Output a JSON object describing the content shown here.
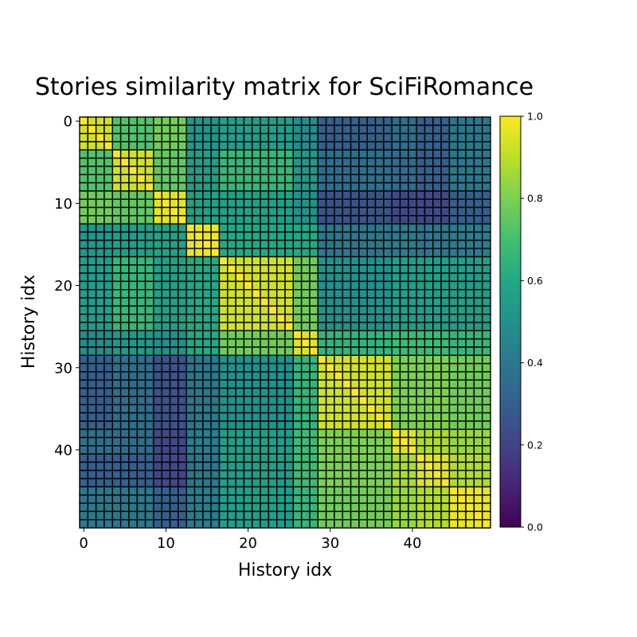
{
  "chart_data": {
    "type": "heatmap",
    "title": "Stories similarity matrix for SciFiRomance",
    "xlabel": "History idx",
    "ylabel": "History idx",
    "n": 50,
    "x_ticks": [
      0,
      10,
      20,
      30,
      40
    ],
    "y_ticks": [
      0,
      10,
      20,
      30,
      40
    ],
    "colormap": "viridis",
    "vmin": 0.0,
    "vmax": 1.0,
    "colorbar_ticks": [
      "0.0",
      "0.2",
      "0.4",
      "0.6",
      "0.8",
      "1.0"
    ],
    "cell_edgecolor": "#000000",
    "diagonal_value": 1.0,
    "groups": [
      {
        "start": 0,
        "end": 3
      },
      {
        "start": 4,
        "end": 8
      },
      {
        "start": 9,
        "end": 12
      },
      {
        "start": 13,
        "end": 16
      },
      {
        "start": 17,
        "end": 25
      },
      {
        "start": 26,
        "end": 28
      },
      {
        "start": 29,
        "end": 37
      },
      {
        "start": 38,
        "end": 40
      },
      {
        "start": 41,
        "end": 44
      },
      {
        "start": 45,
        "end": 49
      }
    ],
    "group_similarity": [
      [
        0.93,
        0.72,
        0.78,
        0.52,
        0.55,
        0.48,
        0.3,
        0.36,
        0.3,
        0.4
      ],
      [
        0.72,
        0.93,
        0.75,
        0.55,
        0.66,
        0.53,
        0.36,
        0.35,
        0.3,
        0.4
      ],
      [
        0.78,
        0.75,
        0.96,
        0.56,
        0.56,
        0.5,
        0.25,
        0.22,
        0.22,
        0.3
      ],
      [
        0.52,
        0.55,
        0.56,
        0.97,
        0.6,
        0.6,
        0.4,
        0.42,
        0.4,
        0.42
      ],
      [
        0.55,
        0.66,
        0.56,
        0.6,
        0.93,
        0.78,
        0.5,
        0.55,
        0.55,
        0.55
      ],
      [
        0.48,
        0.53,
        0.5,
        0.6,
        0.78,
        0.95,
        0.65,
        0.68,
        0.68,
        0.66
      ],
      [
        0.3,
        0.36,
        0.25,
        0.4,
        0.5,
        0.65,
        0.93,
        0.8,
        0.8,
        0.78
      ],
      [
        0.36,
        0.35,
        0.22,
        0.42,
        0.55,
        0.68,
        0.8,
        0.95,
        0.87,
        0.84
      ],
      [
        0.3,
        0.3,
        0.22,
        0.4,
        0.55,
        0.68,
        0.8,
        0.87,
        0.95,
        0.88
      ],
      [
        0.4,
        0.4,
        0.3,
        0.42,
        0.55,
        0.66,
        0.78,
        0.84,
        0.88,
        0.97
      ]
    ]
  }
}
